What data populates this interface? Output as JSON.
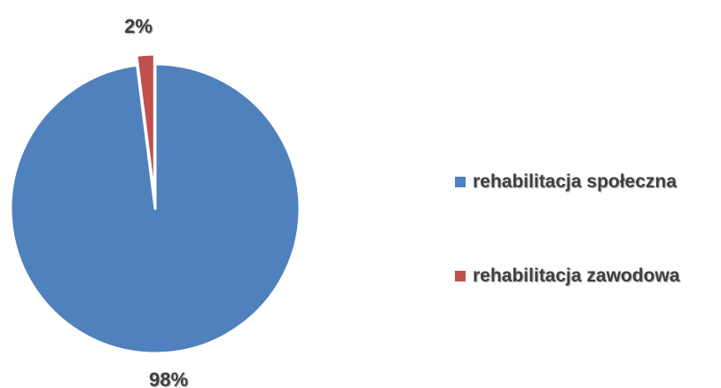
{
  "chart_data": {
    "type": "pie",
    "title": "",
    "categories": [
      "rehabilitacja społeczna",
      "rehabilitacja zawodowa"
    ],
    "values": [
      98,
      2
    ],
    "value_labels": [
      "98%",
      "2%"
    ],
    "colors": [
      "#4F81BD",
      "#C0504D"
    ],
    "legend_position": "right",
    "exploded_slice": "rehabilitacja zawodowa"
  }
}
